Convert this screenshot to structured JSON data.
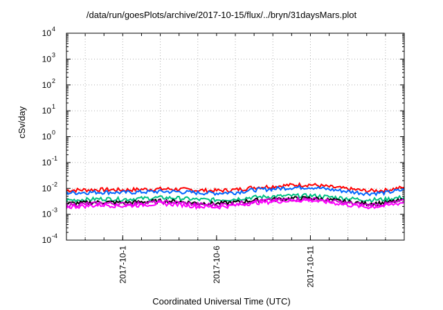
{
  "chart_data": {
    "type": "line",
    "title": "/data/run/goesPlots/archive/2017-10-15/flux/../bryn/31daysMars.plot",
    "xlabel": "Coordinated Universal Time (UTC)",
    "ylabel": "cSv/day",
    "yscale": "log",
    "ylim": [
      0.0001,
      10000
    ],
    "y_ticks": [
      {
        "exp": "4"
      },
      {
        "exp": "3"
      },
      {
        "exp": "2"
      },
      {
        "exp": "1"
      },
      {
        "exp": "0"
      },
      {
        "exp": "-1"
      },
      {
        "exp": "-2"
      },
      {
        "exp": "-3"
      },
      {
        "exp": "-4"
      }
    ],
    "y_tick_base": "10",
    "xlim": [
      "2017-09-28",
      "2017-10-16"
    ],
    "x_ticks": [
      "2017-10-1",
      "2017-10-6",
      "2017-10-11"
    ],
    "grid": true,
    "series": [
      {
        "color": "#ff0000",
        "base": 0.0085,
        "x": [
          "2017-09-28",
          "2017-09-29",
          "2017-09-30",
          "2017-10-01",
          "2017-10-02",
          "2017-10-03",
          "2017-10-04",
          "2017-10-05",
          "2017-10-06",
          "2017-10-07",
          "2017-10-08",
          "2017-10-09",
          "2017-10-10",
          "2017-10-11",
          "2017-10-12",
          "2017-10-13",
          "2017-10-14",
          "2017-10-15",
          "2017-10-16"
        ],
        "values": [
          0.0085,
          0.0088,
          0.009,
          0.0087,
          0.0092,
          0.0095,
          0.0093,
          0.0085,
          0.0082,
          0.0088,
          0.011,
          0.012,
          0.0135,
          0.014,
          0.0115,
          0.0095,
          0.008,
          0.0085,
          0.011
        ]
      },
      {
        "color": "#0066ff",
        "base": 0.0065,
        "x": [
          "2017-09-28",
          "2017-09-29",
          "2017-09-30",
          "2017-10-01",
          "2017-10-02",
          "2017-10-03",
          "2017-10-04",
          "2017-10-05",
          "2017-10-06",
          "2017-10-07",
          "2017-10-08",
          "2017-10-09",
          "2017-10-10",
          "2017-10-11",
          "2017-10-12",
          "2017-10-13",
          "2017-10-14",
          "2017-10-15",
          "2017-10-16"
        ],
        "values": [
          0.0067,
          0.007,
          0.0072,
          0.0069,
          0.0073,
          0.0076,
          0.0074,
          0.0068,
          0.0066,
          0.007,
          0.0088,
          0.0096,
          0.0108,
          0.0112,
          0.0092,
          0.0076,
          0.0064,
          0.0068,
          0.0088
        ]
      },
      {
        "color": "#00c080",
        "base": 0.0037,
        "x": [
          "2017-09-28",
          "2017-09-29",
          "2017-09-30",
          "2017-10-01",
          "2017-10-02",
          "2017-10-03",
          "2017-10-04",
          "2017-10-05",
          "2017-10-06",
          "2017-10-07",
          "2017-10-08",
          "2017-10-09",
          "2017-10-10",
          "2017-10-11",
          "2017-10-12",
          "2017-10-13",
          "2017-10-14",
          "2017-10-15",
          "2017-10-16"
        ],
        "values": [
          0.0035,
          0.0037,
          0.004,
          0.0038,
          0.0041,
          0.0044,
          0.0042,
          0.0037,
          0.0036,
          0.0039,
          0.0046,
          0.0049,
          0.0052,
          0.0053,
          0.0047,
          0.0041,
          0.0036,
          0.0038,
          0.0046
        ]
      },
      {
        "color": "#000000",
        "base": 0.0027,
        "x": [
          "2017-09-28",
          "2017-09-29",
          "2017-09-30",
          "2017-10-01",
          "2017-10-02",
          "2017-10-03",
          "2017-10-04",
          "2017-10-05",
          "2017-10-06",
          "2017-10-07",
          "2017-10-08",
          "2017-10-09",
          "2017-10-10",
          "2017-10-11",
          "2017-10-12",
          "2017-10-13",
          "2017-10-14",
          "2017-10-15",
          "2017-10-16"
        ],
        "values": [
          0.0026,
          0.0028,
          0.003,
          0.0028,
          0.003,
          0.0033,
          0.0031,
          0.0027,
          0.0026,
          0.0029,
          0.0035,
          0.0038,
          0.0041,
          0.0042,
          0.0036,
          0.003,
          0.0026,
          0.0028,
          0.0036
        ]
      },
      {
        "color": "#cc00cc",
        "base": 0.0024,
        "x": [
          "2017-09-28",
          "2017-09-29",
          "2017-09-30",
          "2017-10-01",
          "2017-10-02",
          "2017-10-03",
          "2017-10-04",
          "2017-10-05",
          "2017-10-06",
          "2017-10-07",
          "2017-10-08",
          "2017-10-09",
          "2017-10-10",
          "2017-10-11",
          "2017-10-12",
          "2017-10-13",
          "2017-10-14",
          "2017-10-15",
          "2017-10-16"
        ],
        "values": [
          0.0023,
          0.0025,
          0.0027,
          0.0025,
          0.0027,
          0.003,
          0.0028,
          0.0024,
          0.0023,
          0.0026,
          0.0032,
          0.0035,
          0.0038,
          0.0039,
          0.0033,
          0.0027,
          0.0023,
          0.0025,
          0.0033
        ]
      },
      {
        "color": "#ff00ff",
        "base": 0.0021,
        "x": [
          "2017-09-28",
          "2017-09-29",
          "2017-09-30",
          "2017-10-01",
          "2017-10-02",
          "2017-10-03",
          "2017-10-04",
          "2017-10-05",
          "2017-10-06",
          "2017-10-07",
          "2017-10-08",
          "2017-10-09",
          "2017-10-10",
          "2017-10-11",
          "2017-10-12",
          "2017-10-13",
          "2017-10-14",
          "2017-10-15",
          "2017-10-16"
        ],
        "values": [
          0.0019,
          0.0021,
          0.0023,
          0.0021,
          0.0023,
          0.0026,
          0.0024,
          0.002,
          0.0019,
          0.0022,
          0.0028,
          0.0031,
          0.0034,
          0.0035,
          0.0029,
          0.0023,
          0.0019,
          0.0021,
          0.0029
        ]
      }
    ]
  }
}
